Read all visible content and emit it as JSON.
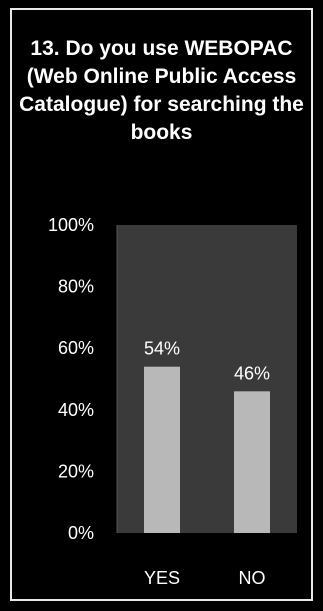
{
  "chart_data": {
    "type": "bar",
    "title": "13. Do you use WEBOPAC (Web Online Public Access Catalogue) for searching the books",
    "categories": [
      "YES",
      "NO"
    ],
    "values": [
      54,
      46
    ],
    "data_labels": [
      "54%",
      "46%"
    ],
    "yticks": [
      "0%",
      "20%",
      "40%",
      "60%",
      "80%",
      "100%"
    ],
    "ylim": [
      0,
      100
    ],
    "xlabel": "",
    "ylabel": "",
    "grid": false,
    "legend": "none"
  },
  "colors": {
    "background": "#000000",
    "plot_area": "#3a3a3a",
    "bar": "#b8b8b8",
    "text": "#ffffff"
  }
}
